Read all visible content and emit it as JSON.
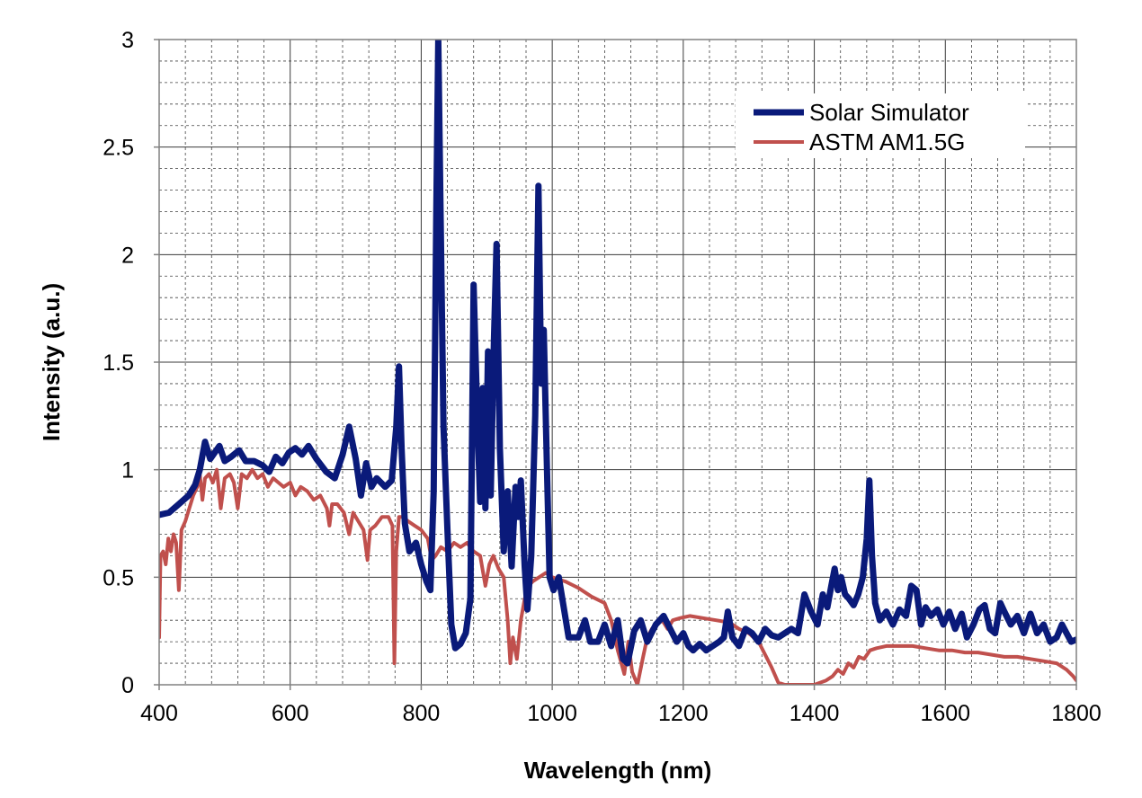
{
  "chart_data": {
    "type": "line",
    "title": "",
    "xlabel": "Wavelength (nm)",
    "ylabel": "Intensity (a.u.)",
    "xlim": [
      400,
      1800
    ],
    "ylim": [
      0,
      3
    ],
    "x_ticks": [
      400,
      600,
      800,
      1000,
      1200,
      1400,
      1600,
      1800
    ],
    "y_ticks": [
      0,
      0.5,
      1,
      1.5,
      2,
      2.5,
      3
    ],
    "x_tick_labels": [
      "400",
      "600",
      "800",
      "1000",
      "1200",
      "1400",
      "1600",
      "1800"
    ],
    "y_tick_labels": [
      "0",
      "0.5",
      "1",
      "1.5",
      "2",
      "2.5",
      "3"
    ],
    "grid": true,
    "grid_minor_x": 40,
    "grid_minor_y": 0.1,
    "legend_position": "top-right",
    "series": [
      {
        "name": "Solar Simulator",
        "color": "#0a1a7a",
        "width": 7,
        "points": [
          [
            400,
            0.79
          ],
          [
            415,
            0.8
          ],
          [
            430,
            0.84
          ],
          [
            445,
            0.88
          ],
          [
            455,
            0.93
          ],
          [
            462,
            1.0
          ],
          [
            470,
            1.13
          ],
          [
            478,
            1.05
          ],
          [
            485,
            1.08
          ],
          [
            492,
            1.11
          ],
          [
            500,
            1.04
          ],
          [
            510,
            1.06
          ],
          [
            522,
            1.09
          ],
          [
            532,
            1.04
          ],
          [
            545,
            1.04
          ],
          [
            558,
            1.02
          ],
          [
            568,
            0.99
          ],
          [
            578,
            1.06
          ],
          [
            588,
            1.03
          ],
          [
            598,
            1.08
          ],
          [
            608,
            1.1
          ],
          [
            618,
            1.07
          ],
          [
            628,
            1.11
          ],
          [
            640,
            1.05
          ],
          [
            655,
            0.99
          ],
          [
            668,
            0.96
          ],
          [
            680,
            1.07
          ],
          [
            690,
            1.2
          ],
          [
            700,
            1.05
          ],
          [
            708,
            0.88
          ],
          [
            716,
            1.03
          ],
          [
            724,
            0.92
          ],
          [
            732,
            0.96
          ],
          [
            745,
            0.92
          ],
          [
            755,
            0.95
          ],
          [
            762,
            1.2
          ],
          [
            766,
            1.48
          ],
          [
            770,
            1.1
          ],
          [
            775,
            0.75
          ],
          [
            782,
            0.62
          ],
          [
            792,
            0.66
          ],
          [
            800,
            0.56
          ],
          [
            808,
            0.48
          ],
          [
            814,
            0.44
          ],
          [
            819,
            0.9
          ],
          [
            823,
            2.2
          ],
          [
            826,
            3.0
          ],
          [
            829,
            2.3
          ],
          [
            834,
            1.2
          ],
          [
            840,
            0.72
          ],
          [
            846,
            0.28
          ],
          [
            852,
            0.17
          ],
          [
            860,
            0.19
          ],
          [
            868,
            0.24
          ],
          [
            875,
            0.4
          ],
          [
            880,
            1.86
          ],
          [
            886,
            1.2
          ],
          [
            890,
            0.85
          ],
          [
            894,
            1.38
          ],
          [
            898,
            0.82
          ],
          [
            902,
            1.55
          ],
          [
            906,
            0.88
          ],
          [
            911,
            1.6
          ],
          [
            915,
            2.05
          ],
          [
            920,
            1.1
          ],
          [
            926,
            0.62
          ],
          [
            932,
            0.9
          ],
          [
            938,
            0.55
          ],
          [
            944,
            0.92
          ],
          [
            948,
            0.78
          ],
          [
            952,
            0.95
          ],
          [
            958,
            0.55
          ],
          [
            962,
            0.35
          ],
          [
            968,
            0.6
          ],
          [
            974,
            1.25
          ],
          [
            979,
            2.32
          ],
          [
            983,
            1.4
          ],
          [
            987,
            1.65
          ],
          [
            992,
            1.0
          ],
          [
            996,
            0.5
          ],
          [
            1002,
            0.44
          ],
          [
            1010,
            0.5
          ],
          [
            1018,
            0.35
          ],
          [
            1025,
            0.22
          ],
          [
            1040,
            0.22
          ],
          [
            1050,
            0.3
          ],
          [
            1058,
            0.2
          ],
          [
            1070,
            0.2
          ],
          [
            1080,
            0.28
          ],
          [
            1090,
            0.18
          ],
          [
            1100,
            0.3
          ],
          [
            1108,
            0.12
          ],
          [
            1115,
            0.1
          ],
          [
            1125,
            0.25
          ],
          [
            1135,
            0.3
          ],
          [
            1145,
            0.2
          ],
          [
            1158,
            0.28
          ],
          [
            1170,
            0.32
          ],
          [
            1180,
            0.26
          ],
          [
            1190,
            0.2
          ],
          [
            1200,
            0.24
          ],
          [
            1208,
            0.18
          ],
          [
            1215,
            0.16
          ],
          [
            1225,
            0.19
          ],
          [
            1235,
            0.16
          ],
          [
            1245,
            0.18
          ],
          [
            1255,
            0.2
          ],
          [
            1262,
            0.22
          ],
          [
            1268,
            0.34
          ],
          [
            1275,
            0.22
          ],
          [
            1285,
            0.18
          ],
          [
            1295,
            0.26
          ],
          [
            1305,
            0.24
          ],
          [
            1315,
            0.2
          ],
          [
            1325,
            0.26
          ],
          [
            1335,
            0.23
          ],
          [
            1345,
            0.22
          ],
          [
            1355,
            0.24
          ],
          [
            1365,
            0.26
          ],
          [
            1375,
            0.24
          ],
          [
            1385,
            0.42
          ],
          [
            1395,
            0.34
          ],
          [
            1405,
            0.28
          ],
          [
            1413,
            0.42
          ],
          [
            1420,
            0.36
          ],
          [
            1426,
            0.46
          ],
          [
            1431,
            0.54
          ],
          [
            1436,
            0.44
          ],
          [
            1441,
            0.5
          ],
          [
            1447,
            0.42
          ],
          [
            1453,
            0.4
          ],
          [
            1460,
            0.37
          ],
          [
            1467,
            0.42
          ],
          [
            1474,
            0.5
          ],
          [
            1480,
            0.68
          ],
          [
            1484,
            0.95
          ],
          [
            1488,
            0.6
          ],
          [
            1493,
            0.38
          ],
          [
            1500,
            0.3
          ],
          [
            1510,
            0.34
          ],
          [
            1520,
            0.28
          ],
          [
            1530,
            0.35
          ],
          [
            1540,
            0.32
          ],
          [
            1548,
            0.46
          ],
          [
            1556,
            0.44
          ],
          [
            1563,
            0.28
          ],
          [
            1570,
            0.36
          ],
          [
            1578,
            0.32
          ],
          [
            1588,
            0.35
          ],
          [
            1597,
            0.28
          ],
          [
            1606,
            0.34
          ],
          [
            1615,
            0.26
          ],
          [
            1625,
            0.33
          ],
          [
            1633,
            0.22
          ],
          [
            1643,
            0.28
          ],
          [
            1652,
            0.35
          ],
          [
            1660,
            0.37
          ],
          [
            1668,
            0.26
          ],
          [
            1676,
            0.24
          ],
          [
            1684,
            0.38
          ],
          [
            1690,
            0.34
          ],
          [
            1700,
            0.28
          ],
          [
            1710,
            0.32
          ],
          [
            1720,
            0.24
          ],
          [
            1730,
            0.33
          ],
          [
            1740,
            0.24
          ],
          [
            1750,
            0.28
          ],
          [
            1760,
            0.2
          ],
          [
            1770,
            0.22
          ],
          [
            1778,
            0.28
          ],
          [
            1785,
            0.24
          ],
          [
            1792,
            0.2
          ],
          [
            1800,
            0.21
          ]
        ]
      },
      {
        "name": "ASTM AM1.5G",
        "color": "#c0504d",
        "width": 4,
        "points": [
          [
            400,
            0.22
          ],
          [
            402,
            0.6
          ],
          [
            406,
            0.62
          ],
          [
            410,
            0.56
          ],
          [
            414,
            0.68
          ],
          [
            418,
            0.62
          ],
          [
            422,
            0.7
          ],
          [
            426,
            0.66
          ],
          [
            430,
            0.44
          ],
          [
            434,
            0.72
          ],
          [
            440,
            0.76
          ],
          [
            446,
            0.82
          ],
          [
            452,
            0.88
          ],
          [
            458,
            0.92
          ],
          [
            462,
            0.98
          ],
          [
            466,
            0.86
          ],
          [
            470,
            0.96
          ],
          [
            476,
            0.98
          ],
          [
            482,
            0.94
          ],
          [
            488,
            1.0
          ],
          [
            494,
            0.82
          ],
          [
            500,
            0.96
          ],
          [
            508,
            0.98
          ],
          [
            514,
            0.94
          ],
          [
            520,
            0.82
          ],
          [
            526,
            0.98
          ],
          [
            534,
            0.96
          ],
          [
            542,
            1.0
          ],
          [
            550,
            0.96
          ],
          [
            558,
            0.98
          ],
          [
            566,
            0.92
          ],
          [
            574,
            0.96
          ],
          [
            582,
            0.94
          ],
          [
            590,
            0.92
          ],
          [
            600,
            0.94
          ],
          [
            608,
            0.88
          ],
          [
            616,
            0.92
          ],
          [
            626,
            0.9
          ],
          [
            636,
            0.86
          ],
          [
            646,
            0.88
          ],
          [
            656,
            0.82
          ],
          [
            660,
            0.74
          ],
          [
            664,
            0.84
          ],
          [
            672,
            0.84
          ],
          [
            682,
            0.8
          ],
          [
            690,
            0.7
          ],
          [
            696,
            0.8
          ],
          [
            704,
            0.76
          ],
          [
            712,
            0.72
          ],
          [
            718,
            0.58
          ],
          [
            722,
            0.72
          ],
          [
            730,
            0.74
          ],
          [
            740,
            0.78
          ],
          [
            750,
            0.78
          ],
          [
            756,
            0.74
          ],
          [
            759,
            0.1
          ],
          [
            762,
            0.62
          ],
          [
            766,
            0.78
          ],
          [
            772,
            0.78
          ],
          [
            780,
            0.76
          ],
          [
            790,
            0.74
          ],
          [
            800,
            0.72
          ],
          [
            810,
            0.68
          ],
          [
            816,
            0.58
          ],
          [
            822,
            0.6
          ],
          [
            830,
            0.64
          ],
          [
            840,
            0.62
          ],
          [
            850,
            0.66
          ],
          [
            860,
            0.64
          ],
          [
            870,
            0.66
          ],
          [
            880,
            0.62
          ],
          [
            890,
            0.6
          ],
          [
            898,
            0.46
          ],
          [
            904,
            0.56
          ],
          [
            910,
            0.6
          ],
          [
            918,
            0.54
          ],
          [
            926,
            0.5
          ],
          [
            932,
            0.3
          ],
          [
            936,
            0.1
          ],
          [
            940,
            0.22
          ],
          [
            946,
            0.12
          ],
          [
            952,
            0.3
          ],
          [
            958,
            0.4
          ],
          [
            964,
            0.46
          ],
          [
            970,
            0.48
          ],
          [
            980,
            0.5
          ],
          [
            990,
            0.52
          ],
          [
            1000,
            0.5
          ],
          [
            1020,
            0.48
          ],
          [
            1040,
            0.45
          ],
          [
            1060,
            0.41
          ],
          [
            1080,
            0.38
          ],
          [
            1090,
            0.3
          ],
          [
            1100,
            0.16
          ],
          [
            1110,
            0.05
          ],
          [
            1116,
            0.2
          ],
          [
            1122,
            0.06
          ],
          [
            1130,
            0.0
          ],
          [
            1138,
            0.12
          ],
          [
            1145,
            0.22
          ],
          [
            1152,
            0.26
          ],
          [
            1160,
            0.28
          ],
          [
            1168,
            0.3
          ],
          [
            1176,
            0.26
          ],
          [
            1184,
            0.3
          ],
          [
            1195,
            0.31
          ],
          [
            1210,
            0.32
          ],
          [
            1230,
            0.31
          ],
          [
            1250,
            0.3
          ],
          [
            1270,
            0.29
          ],
          [
            1285,
            0.26
          ],
          [
            1300,
            0.24
          ],
          [
            1315,
            0.2
          ],
          [
            1325,
            0.14
          ],
          [
            1335,
            0.08
          ],
          [
            1345,
            0.01
          ],
          [
            1355,
            0.0
          ],
          [
            1400,
            0.0
          ],
          [
            1418,
            0.02
          ],
          [
            1428,
            0.04
          ],
          [
            1436,
            0.07
          ],
          [
            1444,
            0.05
          ],
          [
            1452,
            0.1
          ],
          [
            1460,
            0.08
          ],
          [
            1468,
            0.13
          ],
          [
            1476,
            0.12
          ],
          [
            1485,
            0.16
          ],
          [
            1495,
            0.17
          ],
          [
            1510,
            0.18
          ],
          [
            1530,
            0.18
          ],
          [
            1550,
            0.18
          ],
          [
            1570,
            0.17
          ],
          [
            1590,
            0.16
          ],
          [
            1610,
            0.16
          ],
          [
            1630,
            0.15
          ],
          [
            1650,
            0.15
          ],
          [
            1670,
            0.14
          ],
          [
            1690,
            0.13
          ],
          [
            1710,
            0.13
          ],
          [
            1730,
            0.12
          ],
          [
            1750,
            0.11
          ],
          [
            1770,
            0.1
          ],
          [
            1785,
            0.07
          ],
          [
            1795,
            0.04
          ],
          [
            1800,
            0.02
          ]
        ]
      }
    ]
  }
}
